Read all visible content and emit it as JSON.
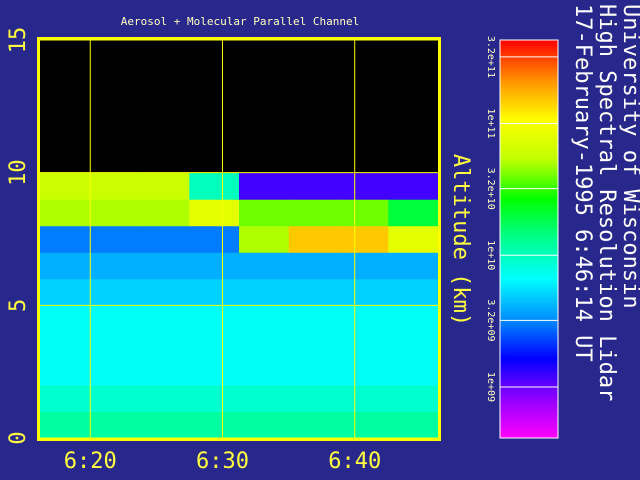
{
  "chart_data": {
    "type": "heatmap",
    "title": "Aerosol + Molecular Parallel Channel",
    "y_label": "Altitude (km)",
    "annotations": [
      "University of Wisconsin",
      "High Spectral Resolution Lidar",
      "17-February-1995   6:46:14 UT"
    ],
    "xlim": [
      376.2,
      406.3
    ],
    "xticks": [
      {
        "value": 380,
        "label": "6:20"
      },
      {
        "value": 390,
        "label": "6:30"
      },
      {
        "value": 400,
        "label": "6:40"
      }
    ],
    "ylim": [
      0,
      15
    ],
    "yticks": [
      0,
      5,
      10,
      15
    ],
    "grid": true,
    "grid_color": "#ffff00",
    "xbins": [
      376.2,
      379.96,
      383.73,
      387.49,
      391.25,
      395.01,
      398.78,
      402.54,
      406.3
    ],
    "ybins": [
      0,
      1,
      2,
      3,
      4,
      5,
      6,
      7,
      8,
      9,
      10,
      11,
      12,
      13,
      14,
      15
    ],
    "z": [
      [
        12000000000,
        12000000000,
        12000000000,
        12000000000,
        12000000000,
        12000000000,
        12000000000,
        12000000000
      ],
      [
        9000000000,
        9000000000,
        9000000000,
        9000000000,
        9000000000,
        9000000000,
        9000000000,
        9000000000
      ],
      [
        7000000000,
        7000000000,
        7000000000,
        7000000000,
        7000000000,
        7000000000,
        7000000000,
        7000000000
      ],
      [
        7000000000,
        7000000000,
        7000000000,
        7000000000,
        7000000000,
        7000000000,
        7000000000,
        7000000000
      ],
      [
        7000000000,
        7000000000,
        7000000000,
        7000000000,
        7000000000,
        7000000000,
        7000000000,
        7000000000
      ],
      [
        5000000000,
        5000000000,
        5000000000,
        5000000000,
        5000000000,
        5000000000,
        5000000000,
        5000000000
      ],
      [
        4000000000,
        4000000000,
        4000000000,
        4000000000,
        4000000000,
        4000000000,
        4000000000,
        4000000000
      ],
      [
        3000000000,
        3000000000,
        3000000000,
        3000000000,
        50000000000,
        150000000000,
        150000000000,
        80000000000
      ],
      [
        50000000000,
        50000000000,
        50000000000,
        80000000000,
        40000000000,
        40000000000,
        40000000000,
        20000000000
      ],
      [
        60000000000,
        60000000000,
        60000000000,
        10000000000,
        1200000000,
        1200000000,
        1200000000,
        1200000000
      ],
      [
        null,
        null,
        null,
        null,
        null,
        null,
        null,
        null
      ],
      [
        null,
        null,
        null,
        null,
        null,
        null,
        null,
        null
      ],
      [
        null,
        null,
        null,
        null,
        null,
        null,
        null,
        null
      ],
      [
        null,
        null,
        null,
        null,
        null,
        null,
        null,
        null
      ],
      [
        null,
        null,
        null,
        null,
        null,
        null,
        null,
        null
      ]
    ],
    "log_scale_color": true,
    "clim": [
      410000000,
      430000000000
    ],
    "cticks": [
      {
        "value": 1000000000,
        "label": "1e+09"
      },
      {
        "value": 3200000000,
        "label": "3.2e+09"
      },
      {
        "value": 10000000000,
        "label": "1e+10"
      },
      {
        "value": 32000000000,
        "label": "3.2e+10"
      },
      {
        "value": 100000000000,
        "label": "1e+11"
      },
      {
        "value": 320000000000,
        "label": "3.2e+11"
      }
    ],
    "colormap": [
      "#ff00ff",
      "#9000ff",
      "#0000ff",
      "#0090ff",
      "#00ffff",
      "#00ff90",
      "#00ff00",
      "#c0ff00",
      "#ffff00",
      "#ff9000",
      "#ff0000"
    ]
  }
}
